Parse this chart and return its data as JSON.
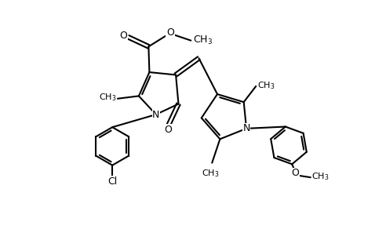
{
  "bg_color": "#ffffff",
  "line_color": "#000000",
  "line_width": 1.5,
  "font_size": 9,
  "fig_width": 4.92,
  "fig_height": 2.92,
  "dpi": 100,
  "xlim": [
    -2.5,
    9.5
  ],
  "ylim": [
    -1.0,
    7.5
  ]
}
